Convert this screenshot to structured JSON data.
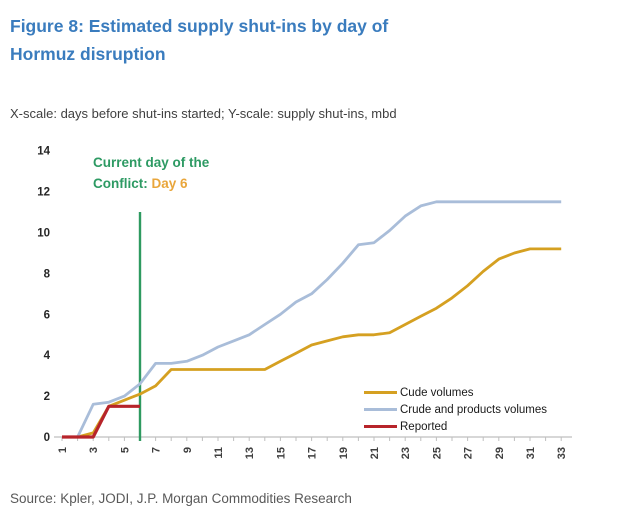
{
  "figure": {
    "title_line1": "Figure 8: Estimated supply shut-ins by day of",
    "title_line2": "Hormuz disruption",
    "subtitle": "X-scale: days before shut-ins started; Y-scale: supply shut-ins, mbd",
    "source": "Source: Kpler, JODI, J.P. Morgan Commodities Research"
  },
  "annotation": {
    "line1": "Current day of the",
    "line2_prefix": "Conflict: ",
    "line2_highlight": "Day 6",
    "text_color": "#2D9A63",
    "highlight_color": "#E9A63B"
  },
  "colors": {
    "title": "#3A7CBE",
    "body_text": "#3F3F3F",
    "source_text": "#595959",
    "axis_text": "#3F3F3F",
    "axis_line": "#BFBFBF"
  },
  "chart_data": {
    "type": "line",
    "x": [
      1,
      2,
      3,
      4,
      5,
      6,
      7,
      8,
      9,
      10,
      11,
      12,
      13,
      14,
      15,
      16,
      17,
      18,
      19,
      20,
      21,
      22,
      23,
      24,
      25,
      26,
      27,
      28,
      29,
      30,
      31,
      32,
      33
    ],
    "series": [
      {
        "name": "Cude volumes",
        "color": "#D5A021",
        "values": [
          0,
          0,
          0.2,
          1.5,
          1.8,
          2.1,
          2.5,
          3.3,
          3.3,
          3.3,
          3.3,
          3.3,
          3.3,
          3.3,
          3.7,
          4.1,
          4.5,
          4.7,
          4.9,
          5.0,
          5.0,
          5.1,
          5.5,
          5.9,
          6.3,
          6.8,
          7.4,
          8.1,
          8.7,
          9.0,
          9.2,
          9.2,
          9.2
        ]
      },
      {
        "name": "Crude and products volumes",
        "color": "#A9BDD9",
        "values": [
          0,
          0,
          1.6,
          1.7,
          2.0,
          2.6,
          3.6,
          3.6,
          3.7,
          4.0,
          4.4,
          4.7,
          5.0,
          5.5,
          6.0,
          6.6,
          7.0,
          7.7,
          8.5,
          9.4,
          9.5,
          10.1,
          10.8,
          11.3,
          11.5,
          11.5,
          11.5,
          11.5,
          11.5,
          11.5,
          11.5,
          11.5,
          11.5
        ]
      },
      {
        "name": "Reported",
        "color": "#B7242A",
        "values": [
          0,
          0,
          0,
          1.5,
          1.5,
          1.5
        ]
      }
    ],
    "vline": {
      "x": 6,
      "y_top": 11.0,
      "color": "#2E9A60",
      "label": "Current day of the Conflict: Day 6"
    },
    "xlabel": "days before shut-ins started",
    "ylabel": "supply shut-ins, mbd",
    "x_tick_labels": [
      1,
      3,
      5,
      7,
      9,
      11,
      13,
      15,
      17,
      19,
      21,
      23,
      25,
      27,
      29,
      31,
      33
    ],
    "y_ticks": [
      0,
      2,
      4,
      6,
      8,
      10,
      12,
      14
    ],
    "ylim": [
      0,
      14
    ],
    "grid": false,
    "legend_position": "inside-bottom-right"
  }
}
